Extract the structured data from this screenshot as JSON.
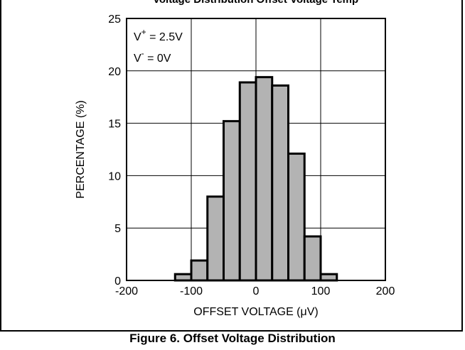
{
  "top_strip_text": "Voltage Distribution  Offset Voltage Temp",
  "figure_caption": "Figure 6. Offset Voltage Distribution",
  "chart_data": {
    "type": "bar",
    "xlabel": "OFFSET VOLTAGE (μV)",
    "ylabel": "PERCENTAGE (%)",
    "xlim": [
      -200,
      200
    ],
    "ylim": [
      0,
      25
    ],
    "xticks": [
      -200,
      -100,
      0,
      100,
      200
    ],
    "yticks": [
      0,
      5,
      10,
      15,
      20,
      25
    ],
    "grid": true,
    "bin_width": 25,
    "bins": [
      {
        "x": -112.5,
        "value": 0.6
      },
      {
        "x": -87.5,
        "value": 1.9
      },
      {
        "x": -62.5,
        "value": 8.0
      },
      {
        "x": -37.5,
        "value": 15.2
      },
      {
        "x": -12.5,
        "value": 18.9
      },
      {
        "x": 12.5,
        "value": 19.4
      },
      {
        "x": 37.5,
        "value": 18.6
      },
      {
        "x": 62.5,
        "value": 12.1
      },
      {
        "x": 87.5,
        "value": 4.2
      },
      {
        "x": 112.5,
        "value": 0.6
      }
    ],
    "bar_color": "#b3b3b3",
    "annotations": [
      {
        "base": "V",
        "sup": "+",
        "rest": " = 2.5V"
      },
      {
        "base": "V",
        "sup": "-",
        "rest": " = 0V"
      }
    ]
  }
}
